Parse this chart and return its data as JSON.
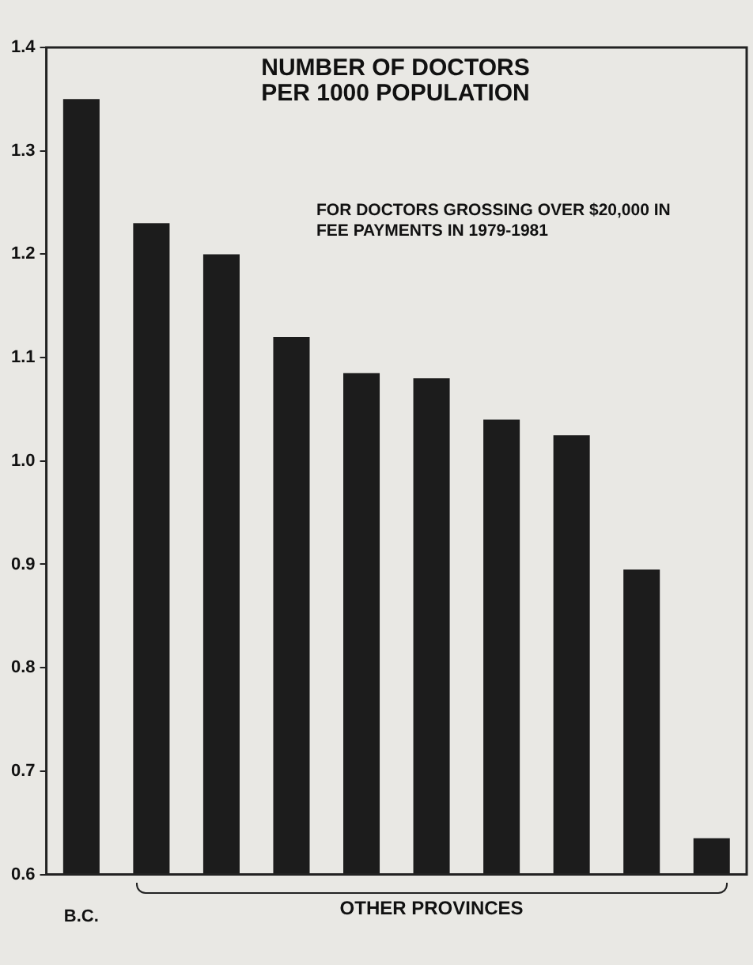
{
  "chart_data": {
    "type": "bar",
    "title": "NUMBER OF DOCTORS PER 1000 POPULATION",
    "subtitle": "FOR DOCTORS GROSSING OVER $20,000 IN FEE PAYMENTS IN 1979-1981",
    "categories": [
      "B.C.",
      null,
      null,
      null,
      null,
      null,
      null,
      null,
      null,
      null
    ],
    "values": [
      1.35,
      1.23,
      1.2,
      1.12,
      1.085,
      1.08,
      1.04,
      1.025,
      0.895,
      0.635
    ],
    "color": "#1c1c1c",
    "ylim": [
      0.6,
      1.4
    ],
    "yticks": [
      0.6,
      0.7,
      0.8,
      0.9,
      {
        "value": 1,
        "label": "1.0"
      },
      1.1,
      1.2,
      1.3,
      1.4
    ],
    "annotations": [
      "OTHER PROVINCES"
    ],
    "grid": false,
    "legend": false
  }
}
